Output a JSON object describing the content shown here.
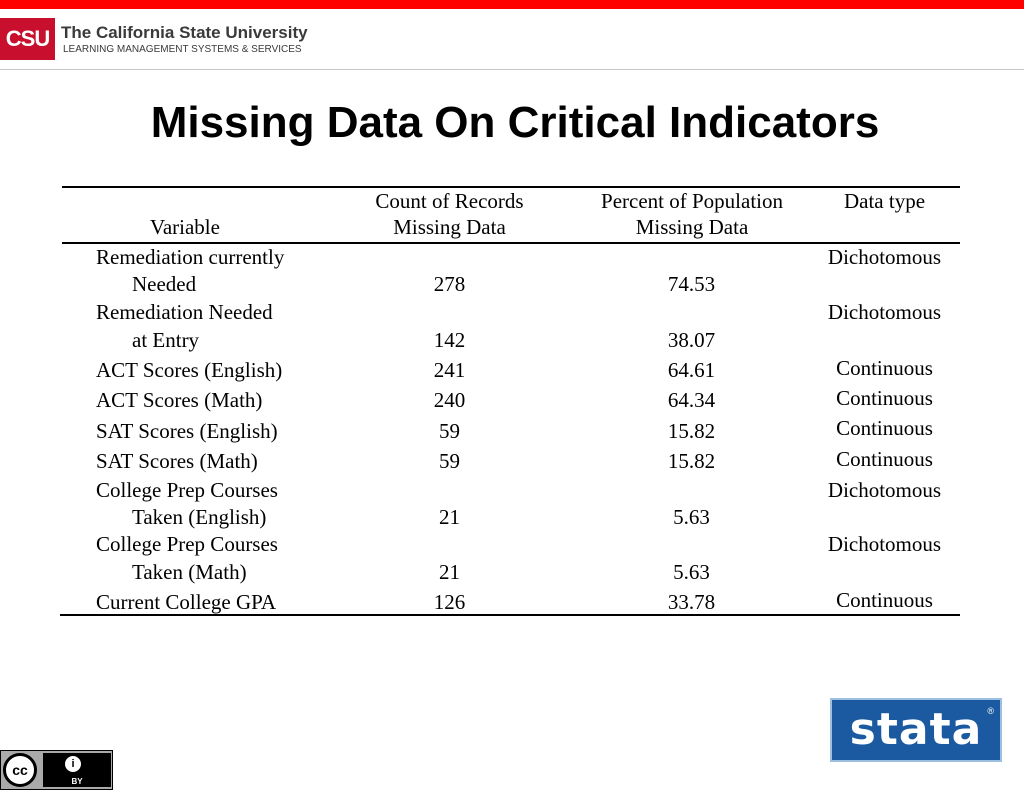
{
  "header": {
    "badge": "CSU",
    "org_name": "The California State University",
    "org_subtitle": "LEARNING MANAGEMENT SYSTEMS & SERVICES"
  },
  "slide": {
    "title": "Missing Data On Critical Indicators"
  },
  "table": {
    "columns": {
      "variable": "Variable",
      "count_line1": "Count of Records",
      "count_line2": "Missing Data",
      "pct_line1": "Percent of Population",
      "pct_line2": "Missing Data",
      "type": "Data type"
    },
    "rows": [
      {
        "var1": "Remediation currently",
        "var2": "Needed",
        "count": "278",
        "pct": "74.53",
        "type": "Dichotomous"
      },
      {
        "var1": "Remediation Needed",
        "var2": "at Entry",
        "count": "142",
        "pct": "38.07",
        "type": "Dichotomous"
      },
      {
        "var1": "ACT Scores (English)",
        "count": "241",
        "pct": "64.61",
        "type": "Continuous"
      },
      {
        "var1": "ACT Scores (Math)",
        "count": "240",
        "pct": "64.34",
        "type": "Continuous"
      },
      {
        "var1": "SAT Scores (English)",
        "count": "59",
        "pct": "15.82",
        "type": "Continuous"
      },
      {
        "var1": "SAT Scores (Math)",
        "count": "59",
        "pct": "15.82",
        "type": "Continuous"
      },
      {
        "var1": "College Prep Courses",
        "var2": "Taken (English)",
        "count": "21",
        "pct": "5.63",
        "type": "Dichotomous"
      },
      {
        "var1": "College Prep Courses",
        "var2": "Taken (Math)",
        "count": "21",
        "pct": "5.63",
        "type": "Dichotomous"
      },
      {
        "var1": "Current College GPA",
        "count": "126",
        "pct": "33.78",
        "type": "Continuous"
      }
    ]
  },
  "footer": {
    "license_left": "cc",
    "license_person": "i",
    "license_by": "BY",
    "logo_text": "stata",
    "logo_reg": "®"
  }
}
